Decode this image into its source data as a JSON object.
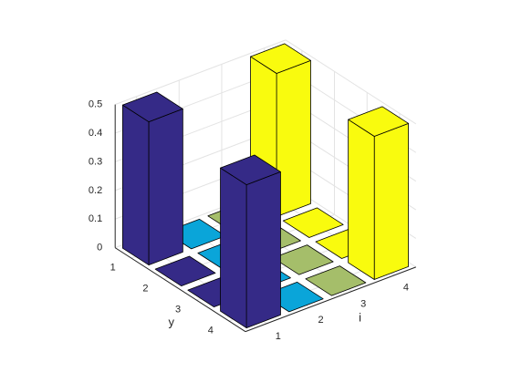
{
  "chart_data": {
    "type": "bar3",
    "xlabel": "i",
    "ylabel": "y",
    "xticks": [
      1,
      2,
      3,
      4
    ],
    "yticks": [
      1,
      2,
      3,
      4
    ],
    "xlim": [
      0.5,
      4.5
    ],
    "ylim": [
      0.5,
      4.5
    ],
    "zlim": [
      0,
      0.5
    ],
    "zticks": [
      0,
      0.1,
      0.2,
      0.3,
      0.4,
      0.5
    ],
    "grid": true,
    "series": [
      {
        "color": "#352a87",
        "values": [
          0.5,
          0,
          0,
          0.5
        ]
      },
      {
        "color": "#0aa5d9",
        "values": [
          0,
          0,
          0,
          0
        ]
      },
      {
        "color": "#a5be6a",
        "values": [
          0,
          0,
          0,
          0
        ]
      },
      {
        "color": "#f9fb0e",
        "values": [
          0.5,
          0,
          0,
          0.5
        ]
      }
    ]
  }
}
